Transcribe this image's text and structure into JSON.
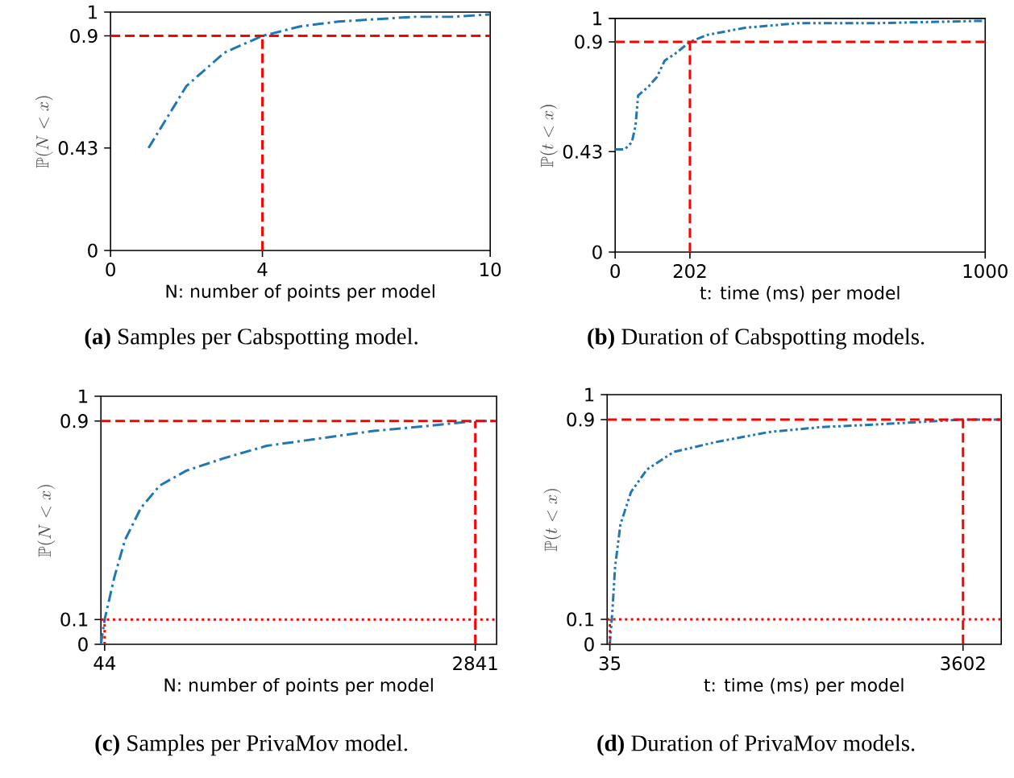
{
  "chart_data": [
    {
      "type": "line",
      "title": "**(a)** Samples per Cabspotting model.",
      "xlabel": "N: number of points per model",
      "ylabel": "\\mathbb{P}(N < x)",
      "xlim": [
        0,
        10
      ],
      "ylim": [
        0,
        1
      ],
      "xticks": [
        0,
        4,
        10
      ],
      "yticks": [
        0,
        0.43,
        0.9,
        1
      ],
      "line_style": "dashdot",
      "series": [
        {
          "color": "#1f77b4",
          "x": [
            1,
            2,
            3,
            4,
            5,
            6,
            7,
            8,
            9,
            10
          ],
          "values": [
            0.43,
            0.69,
            0.83,
            0.9,
            0.94,
            0.96,
            0.97,
            0.98,
            0.98,
            0.99
          ]
        }
      ],
      "ref_lines": [
        {
          "axis": "y",
          "value": 0.9,
          "color": "#ff0000",
          "line_style": "dashed"
        },
        {
          "axis": "x",
          "value": 4,
          "color": "#ff0000",
          "line_style": "dashed"
        }
      ]
    },
    {
      "type": "line",
      "title": "**(b)** Duration of Cabspotting models.",
      "xlabel": "t: time (ms) per model",
      "ylabel": "\\mathbb{P}(t < x)",
      "xlim": [
        0,
        1000
      ],
      "ylim": [
        0,
        1
      ],
      "xticks": [
        0,
        202,
        1000
      ],
      "yticks": [
        0,
        0.43,
        0.9,
        1
      ],
      "line_style": "dashdotdot",
      "series": [
        {
          "color": "#1f77b4",
          "x": [
            0,
            26,
            45,
            55,
            62,
            91,
            113,
            134,
            163,
            202,
            250,
            351,
            495,
            711,
            1000
          ],
          "values": [
            0.44,
            0.44,
            0.47,
            0.54,
            0.67,
            0.71,
            0.75,
            0.82,
            0.85,
            0.9,
            0.93,
            0.96,
            0.98,
            0.98,
            0.99
          ]
        }
      ],
      "ref_lines": [
        {
          "axis": "y",
          "value": 0.9,
          "color": "#ff0000",
          "line_style": "dashed"
        },
        {
          "axis": "x",
          "value": 202,
          "color": "#ff0000",
          "line_style": "dashed"
        }
      ]
    },
    {
      "type": "line",
      "title": "**(c)** Samples per PrivaMov model.",
      "xlabel": "N: number of points per model",
      "ylabel": "\\mathbb{P}(N < x)",
      "xlim": [
        16,
        3002
      ],
      "ylim": [
        0,
        1
      ],
      "xticks": [
        44,
        2841
      ],
      "yticks": [
        0,
        0.1,
        0.9,
        1
      ],
      "line_style": "dashdot",
      "series": [
        {
          "color": "#1f77b4",
          "x": [
            16,
            44,
            117,
            197,
            318,
            460,
            661,
            944,
            1267,
            1670,
            2074,
            2477,
            2841,
            3002
          ],
          "values": [
            0,
            0.1,
            0.27,
            0.42,
            0.55,
            0.64,
            0.7,
            0.75,
            0.8,
            0.83,
            0.86,
            0.88,
            0.9,
            0.9
          ]
        }
      ],
      "ref_lines": [
        {
          "axis": "y",
          "value": 0.9,
          "color": "#ff0000",
          "line_style": "dashed"
        },
        {
          "axis": "y",
          "value": 0.1,
          "color": "#ff0000",
          "line_style": "dotted"
        },
        {
          "axis": "x",
          "value": 2841,
          "color": "#ff0000",
          "line_style": "dashed"
        },
        {
          "axis": "x",
          "value": 44,
          "color": "#ff0000",
          "line_style": "dotted"
        }
      ]
    },
    {
      "type": "line",
      "title": "**(d)** Duration of PrivaMov models.",
      "xlabel": "t: time (ms) per model",
      "ylabel": "\\mathbb{P}(t < x)",
      "xlim": [
        8,
        3988
      ],
      "ylim": [
        0,
        1
      ],
      "xticks": [
        35,
        3602
      ],
      "yticks": [
        0,
        0.1,
        0.9,
        1
      ],
      "line_style": "dashdotdot",
      "series": [
        {
          "color": "#1f77b4",
          "x": [
            35,
            62,
            88,
            142,
            249,
            410,
            678,
            1106,
            1642,
            2177,
            2713,
            3602,
            3988
          ],
          "values": [
            0,
            0.14,
            0.31,
            0.48,
            0.61,
            0.7,
            0.77,
            0.81,
            0.85,
            0.87,
            0.88,
            0.9,
            0.9
          ]
        }
      ],
      "ref_lines": [
        {
          "axis": "y",
          "value": 0.9,
          "color": "#ff0000",
          "line_style": "dashed"
        },
        {
          "axis": "y",
          "value": 0.1,
          "color": "#ff0000",
          "line_style": "dotted"
        },
        {
          "axis": "x",
          "value": 3602,
          "color": "#ff0000",
          "line_style": "dashed"
        },
        {
          "axis": "x",
          "value": 35,
          "color": "#ff0000",
          "line_style": "dotted"
        }
      ]
    }
  ]
}
